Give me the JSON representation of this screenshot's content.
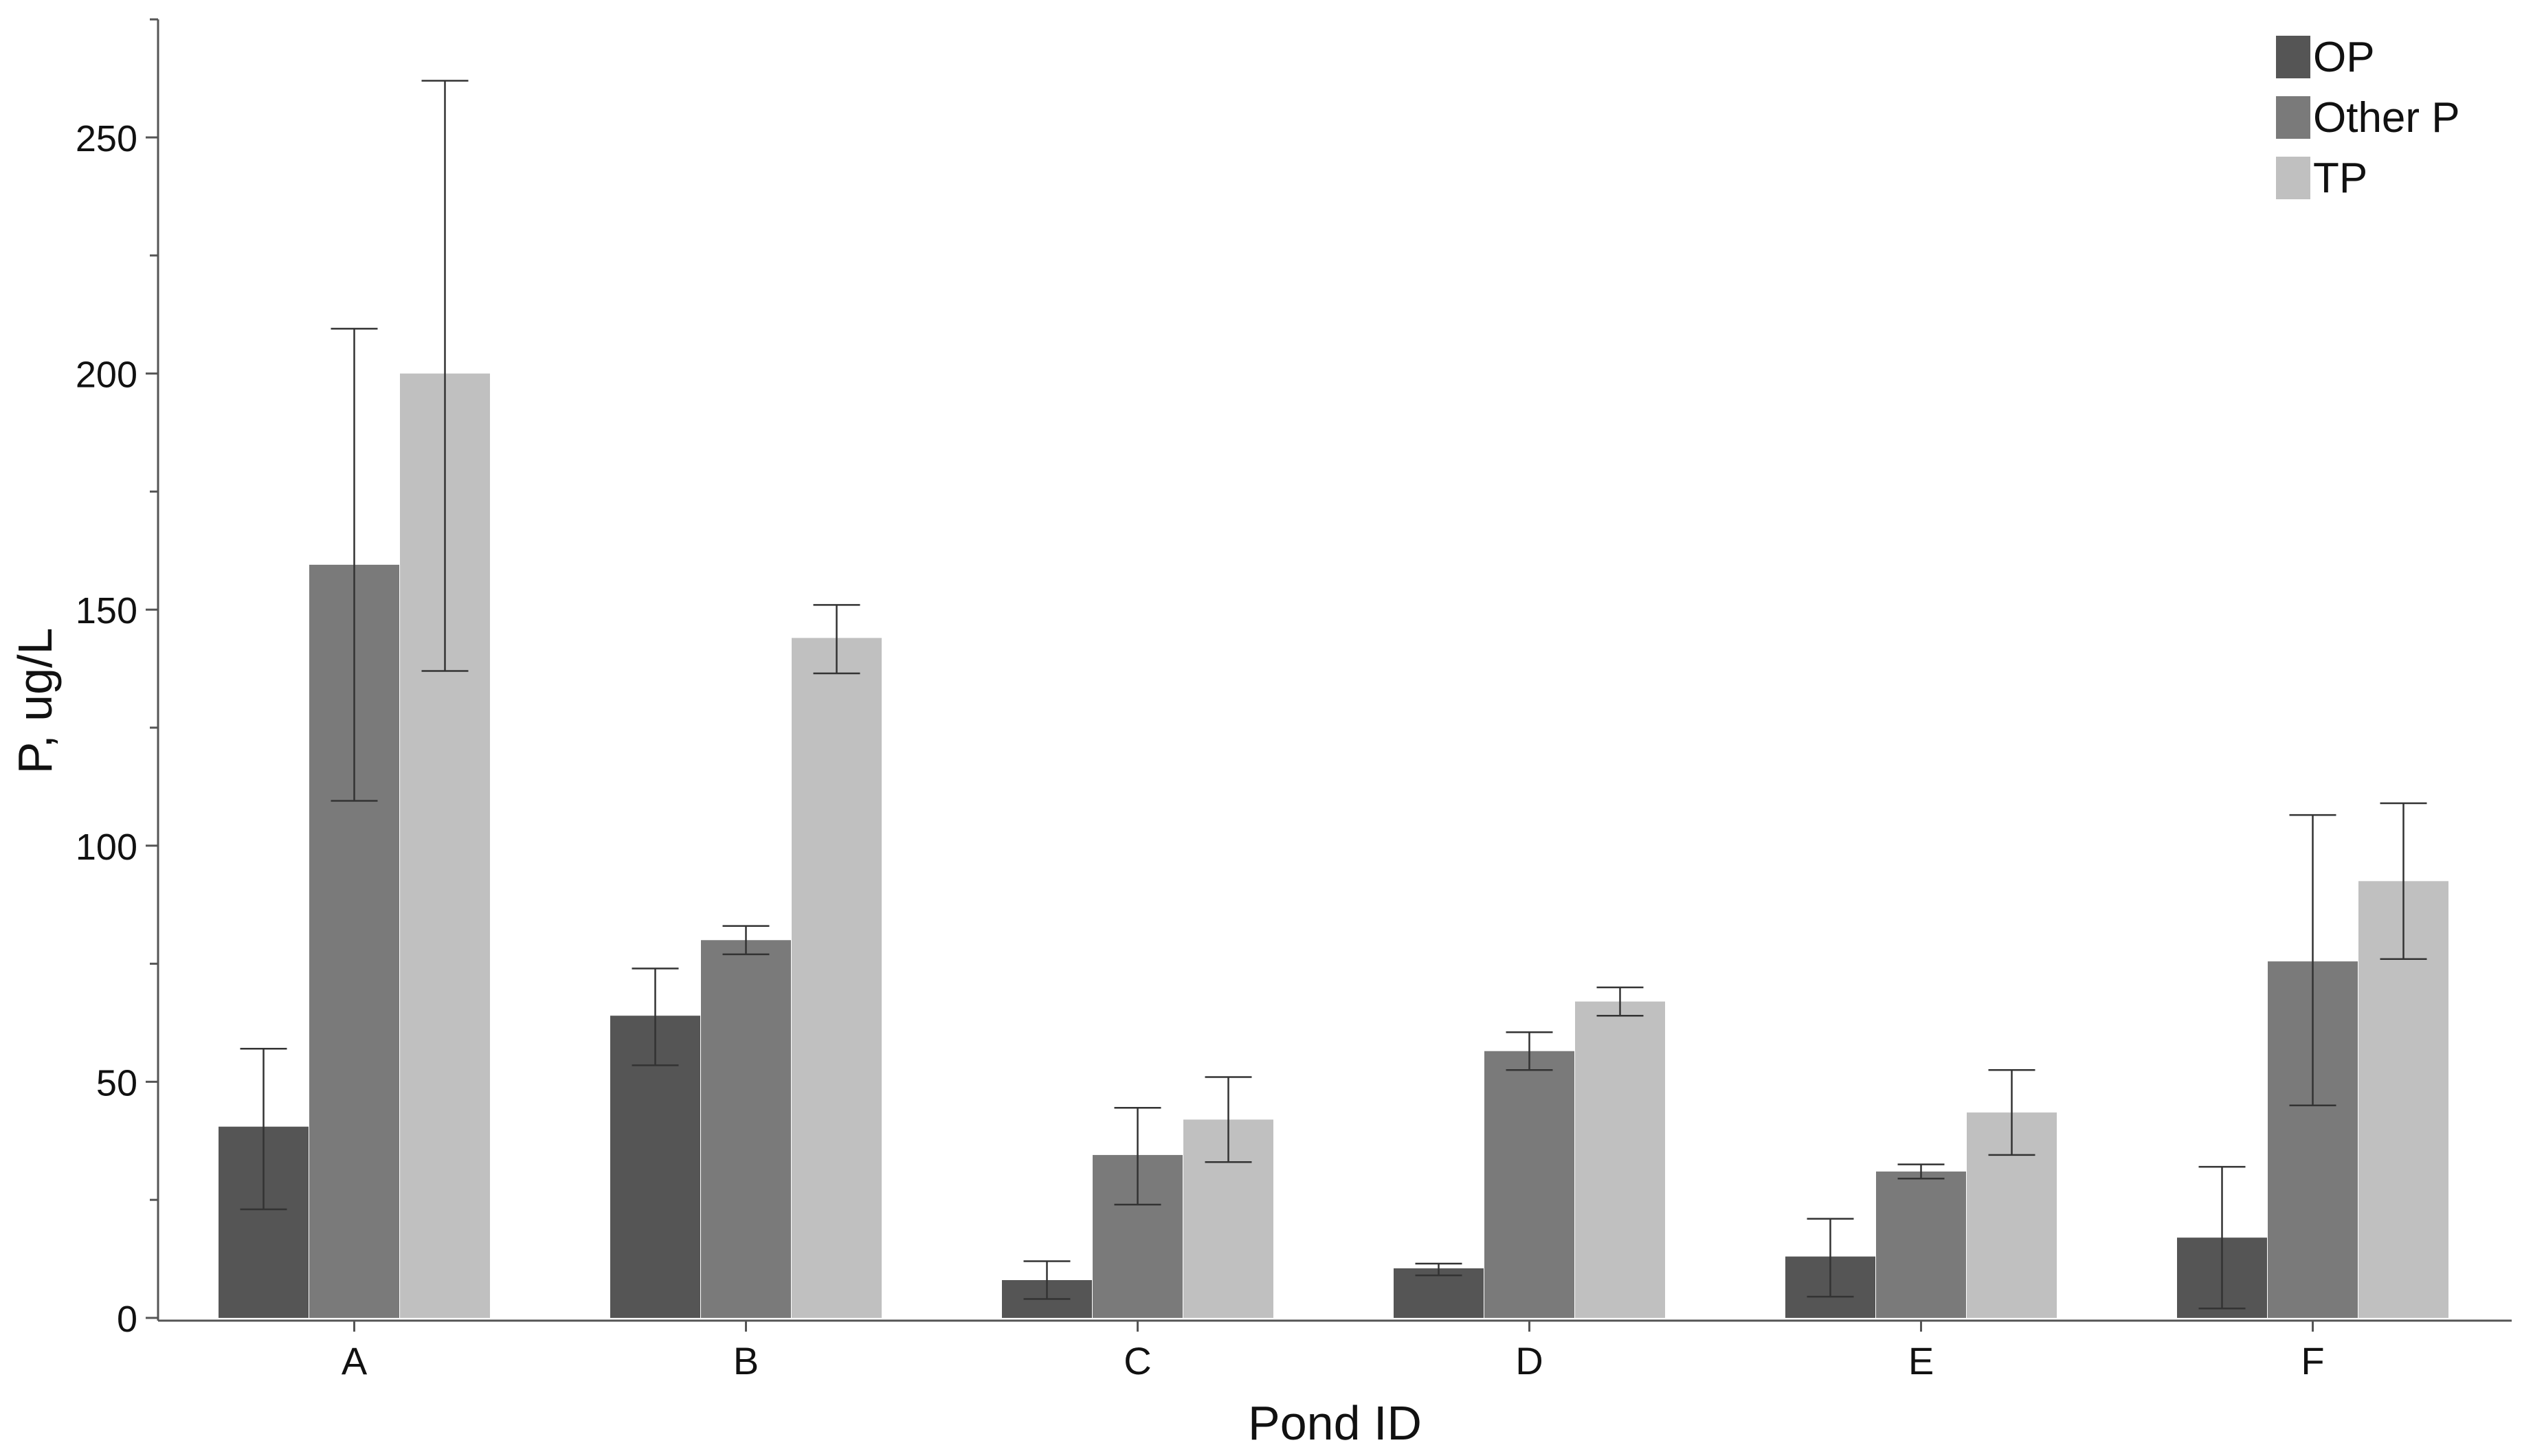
{
  "chart_data": {
    "type": "bar",
    "xlabel": "Pond ID",
    "ylabel": "P, ug/L",
    "categories": [
      "A",
      "B",
      "C",
      "D",
      "E",
      "F"
    ],
    "ylim": [
      0,
      275
    ],
    "yticks": [
      0,
      50,
      100,
      150,
      200,
      250
    ],
    "grid": false,
    "legend_position": "top-right",
    "series": [
      {
        "name": "OP",
        "color": "#555555",
        "values": [
          40.5,
          64,
          8,
          10.5,
          13,
          17
        ],
        "err_low": [
          23,
          53.5,
          4,
          9,
          4.5,
          2
        ],
        "err_high": [
          57,
          74,
          12,
          11.5,
          21,
          32
        ]
      },
      {
        "name": "Other P",
        "color": "#7a7a7a",
        "values": [
          159.5,
          80,
          34.5,
          56.5,
          31,
          75.5
        ],
        "err_low": [
          109.5,
          77,
          24,
          52.5,
          29.5,
          45
        ],
        "err_high": [
          209.5,
          83,
          44.5,
          60.5,
          32.5,
          106.5
        ]
      },
      {
        "name": "TP",
        "color": "#c0c0c0",
        "values": [
          200,
          144,
          42,
          67,
          43.5,
          92.5
        ],
        "err_low": [
          137,
          136.5,
          33,
          64,
          34.5,
          76
        ],
        "err_high": [
          262,
          151,
          51,
          70,
          52.5,
          109
        ]
      }
    ]
  }
}
